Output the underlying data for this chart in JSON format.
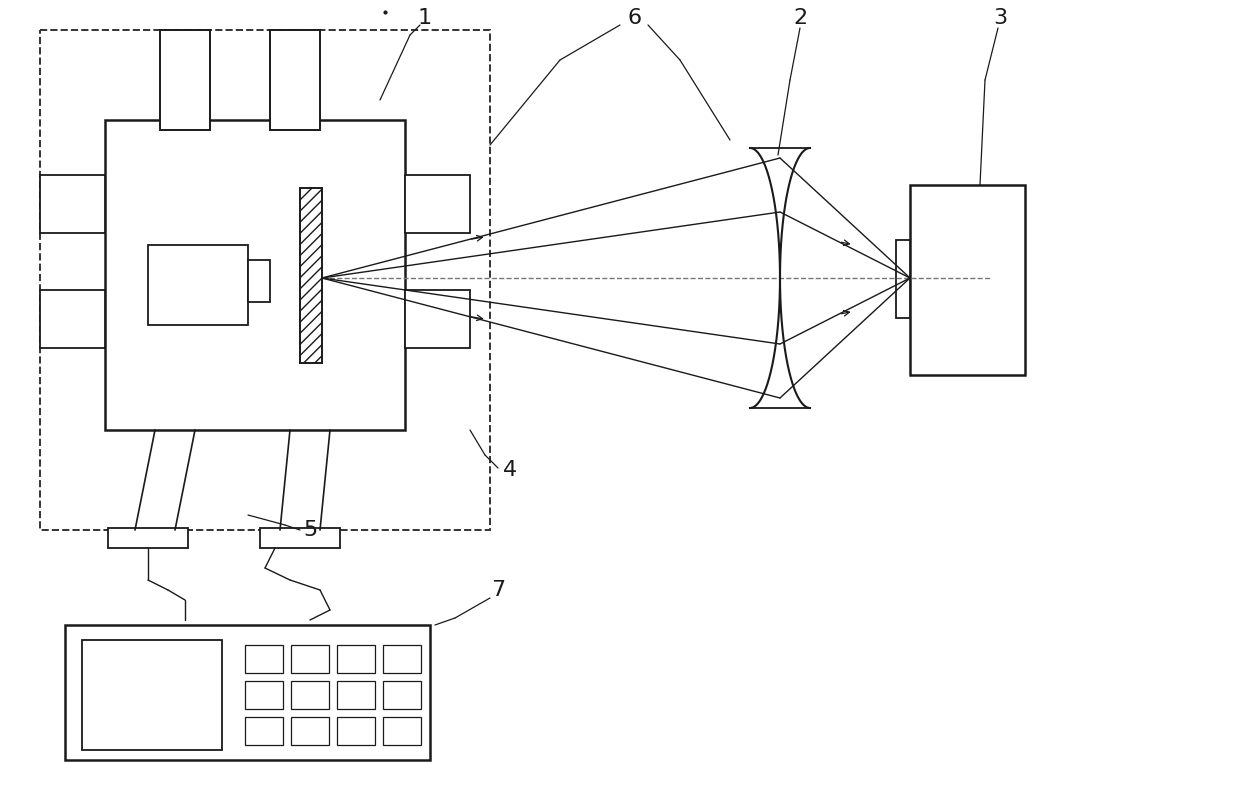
{
  "bg_color": "#ffffff",
  "line_color": "#1a1a1a",
  "figsize": [
    12.4,
    7.86
  ],
  "dpi": 100
}
